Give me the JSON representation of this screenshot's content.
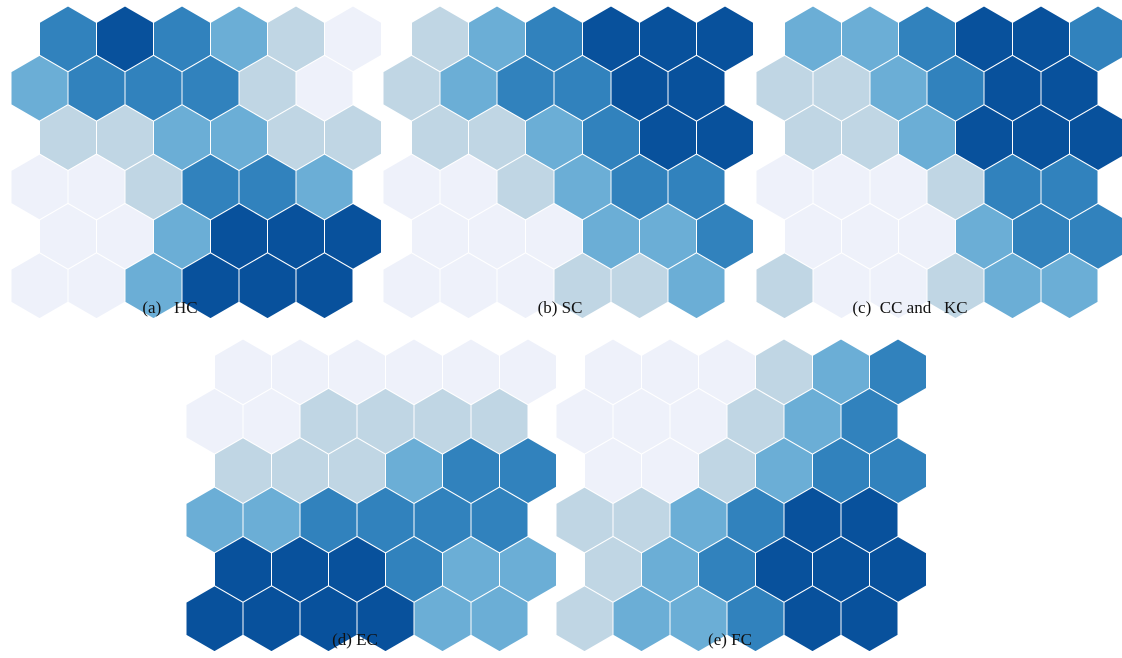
{
  "color_levels": [
    "#eef1fa",
    "#c0d6e4",
    "#6baed6",
    "#3182bd",
    "#08519c"
  ],
  "panels": [
    {
      "id": "HC",
      "caption": "(a)   HC",
      "grid": [
        [
          3,
          4,
          3,
          2,
          1,
          0
        ],
        [
          2,
          3,
          3,
          3,
          1,
          0
        ],
        [
          1,
          1,
          2,
          2,
          1,
          1
        ],
        [
          0,
          0,
          1,
          3,
          3,
          2
        ],
        [
          0,
          0,
          2,
          4,
          4,
          4
        ],
        [
          0,
          0,
          2,
          4,
          4,
          4
        ]
      ]
    },
    {
      "id": "SC",
      "caption": "(b) SC",
      "grid": [
        [
          1,
          2,
          3,
          4,
          4,
          4
        ],
        [
          1,
          2,
          3,
          3,
          4,
          4
        ],
        [
          1,
          1,
          2,
          3,
          4,
          4
        ],
        [
          0,
          0,
          1,
          2,
          3,
          3
        ],
        [
          0,
          0,
          0,
          2,
          2,
          3
        ],
        [
          0,
          0,
          0,
          1,
          1,
          2
        ]
      ]
    },
    {
      "id": "CC_KC",
      "caption": "(c)  CC and   KC",
      "grid": [
        [
          2,
          2,
          3,
          4,
          4,
          3
        ],
        [
          1,
          1,
          2,
          3,
          4,
          4
        ],
        [
          1,
          1,
          2,
          4,
          4,
          4
        ],
        [
          0,
          0,
          0,
          1,
          3,
          3
        ],
        [
          0,
          0,
          0,
          2,
          3,
          3
        ],
        [
          1,
          0,
          0,
          1,
          2,
          2
        ]
      ]
    },
    {
      "id": "EC",
      "caption": "(d) EC",
      "grid": [
        [
          0,
          0,
          0,
          0,
          0,
          0
        ],
        [
          0,
          0,
          1,
          1,
          1,
          1
        ],
        [
          1,
          1,
          1,
          2,
          3,
          3
        ],
        [
          2,
          2,
          3,
          3,
          3,
          3
        ],
        [
          4,
          4,
          4,
          3,
          2,
          2
        ],
        [
          4,
          4,
          4,
          4,
          2,
          2
        ]
      ]
    },
    {
      "id": "FC",
      "caption": "(e) FC",
      "grid": [
        [
          0,
          0,
          0,
          1,
          2,
          3
        ],
        [
          0,
          0,
          0,
          1,
          2,
          3
        ],
        [
          0,
          0,
          1,
          2,
          3,
          3
        ],
        [
          1,
          1,
          2,
          3,
          4,
          4
        ],
        [
          1,
          2,
          3,
          4,
          4,
          4
        ],
        [
          1,
          2,
          2,
          3,
          4,
          4
        ]
      ]
    }
  ]
}
